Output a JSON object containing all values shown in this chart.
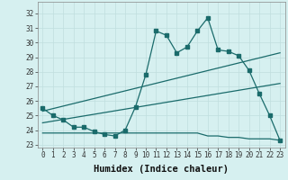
{
  "xlabel": "Humidex (Indice chaleur)",
  "bg_color": "#d6f0f0",
  "line_color": "#1a6b6b",
  "grid_color": "#c0dede",
  "xlim": [
    -0.5,
    23.5
  ],
  "ylim": [
    22.8,
    32.8
  ],
  "yticks": [
    23,
    24,
    25,
    26,
    27,
    28,
    29,
    30,
    31,
    32
  ],
  "xticks": [
    0,
    1,
    2,
    3,
    4,
    5,
    6,
    7,
    8,
    9,
    10,
    11,
    12,
    13,
    14,
    15,
    16,
    17,
    18,
    19,
    20,
    21,
    22,
    23
  ],
  "series1_x": [
    0,
    1,
    2,
    3,
    4,
    5,
    6,
    7,
    8,
    9,
    10,
    11,
    12,
    13,
    14,
    15,
    16,
    17,
    18,
    19,
    20,
    21,
    22,
    23
  ],
  "series1_y": [
    25.5,
    25.0,
    24.7,
    24.2,
    24.2,
    23.9,
    23.7,
    23.6,
    24.0,
    25.6,
    27.8,
    30.8,
    30.5,
    29.3,
    29.7,
    30.8,
    31.7,
    29.5,
    29.4,
    29.1,
    28.1,
    26.5,
    25.0,
    23.3
  ],
  "series2_x": [
    0,
    23
  ],
  "series2_y": [
    25.3,
    29.3
  ],
  "series3_x": [
    0,
    23
  ],
  "series3_y": [
    24.5,
    27.2
  ],
  "series4_x": [
    0,
    1,
    2,
    3,
    4,
    5,
    6,
    7,
    8,
    9,
    10,
    11,
    12,
    13,
    14,
    15,
    16,
    17,
    18,
    19,
    20,
    21,
    22,
    23
  ],
  "series4_y": [
    23.8,
    23.8,
    23.8,
    23.8,
    23.8,
    23.8,
    23.8,
    23.8,
    23.8,
    23.8,
    23.8,
    23.8,
    23.8,
    23.8,
    23.8,
    23.8,
    23.6,
    23.6,
    23.5,
    23.5,
    23.4,
    23.4,
    23.4,
    23.3
  ],
  "xlabel_fontsize": 7.5,
  "tick_fontsize": 5.5
}
